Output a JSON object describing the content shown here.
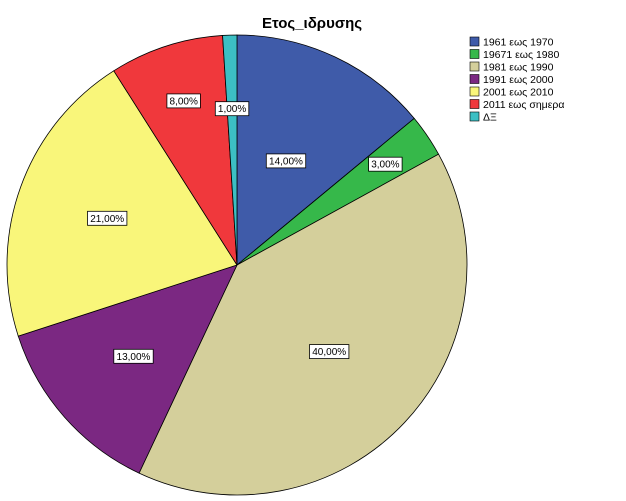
{
  "chart_data": {
    "type": "pie",
    "title": "Ετος_ιδρυσης",
    "categories": [
      "1961 εως 1970",
      "19671 εως 1980",
      "1981 εως 1990",
      "1991 εως 2000",
      "2001 εως 2010",
      "2011 εως σημερα",
      "ΔΞ"
    ],
    "values": [
      14,
      3,
      40,
      13,
      21,
      8,
      1
    ],
    "labels": [
      "14,00%",
      "3,00%",
      "40,00%",
      "13,00%",
      "21,00%",
      "8,00%",
      "1,00%"
    ],
    "colors": [
      "#3f5ba9",
      "#36b84a",
      "#d4cf9b",
      "#7b2882",
      "#f9f67a",
      "#f0383c",
      "#3cbfc4"
    ],
    "start": "12 o'clock",
    "direction": "clockwise",
    "legend_position": "top-right"
  }
}
